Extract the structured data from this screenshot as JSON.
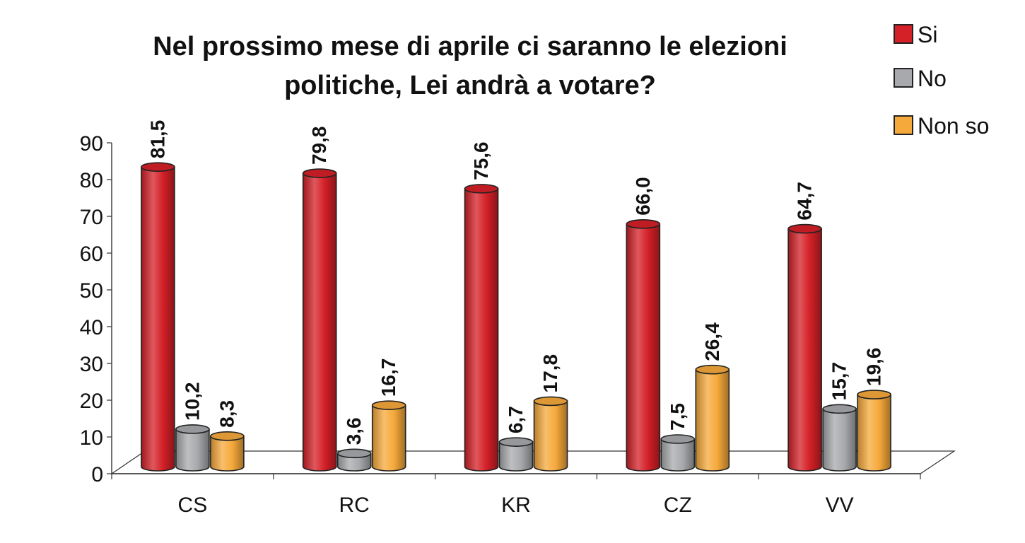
{
  "chart_data": {
    "type": "bar",
    "title": "Nel prossimo mese di aprile ci saranno le elezioni politiche, Lei andrà a votare?",
    "title_lines": [
      "Nel prossimo mese di aprile ci saranno le elezioni",
      "politiche, Lei andrà a votare?"
    ],
    "categories": [
      "CS",
      "RC",
      "KR",
      "CZ",
      "VV"
    ],
    "series": [
      {
        "name": "Si",
        "color": "#d42027",
        "values": [
          81.5,
          79.8,
          75.6,
          66.0,
          64.7
        ],
        "labels": [
          "81,5",
          "79,8",
          "75,6",
          "66,0",
          "64,7"
        ]
      },
      {
        "name": "No",
        "color": "#a7a9ac",
        "values": [
          10.2,
          3.6,
          6.7,
          7.5,
          15.7
        ],
        "labels": [
          "10,2",
          "3,6",
          "6,7",
          "7,5",
          "15,7"
        ]
      },
      {
        "name": "Non so",
        "color": "#f6a93b",
        "values": [
          8.3,
          16.7,
          17.8,
          26.4,
          19.6
        ],
        "labels": [
          "8,3",
          "16,7",
          "17,8",
          "26,4",
          "19,6"
        ]
      }
    ],
    "ylim": [
      0,
      90
    ],
    "yticks": [
      "0",
      "10",
      "20",
      "30",
      "40",
      "50",
      "60",
      "70",
      "80",
      "90"
    ],
    "xlabel": "",
    "ylabel": "",
    "legend_position": "top-right",
    "grid": false,
    "style": "3d-cylinder"
  }
}
